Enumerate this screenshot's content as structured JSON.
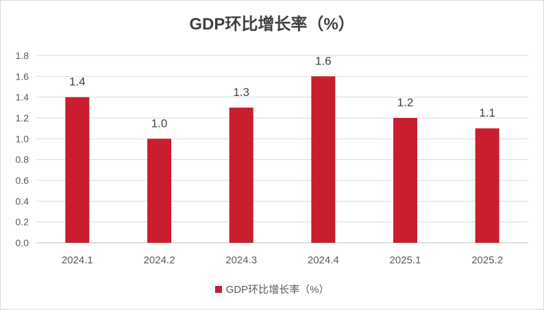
{
  "chart_data": {
    "type": "bar",
    "title": "GDP环比增长率（%）",
    "categories": [
      "2024.1",
      "2024.2",
      "2024.3",
      "2024.4",
      "2025.1",
      "2025.2"
    ],
    "series": [
      {
        "name": "GDP环比增长率（%）",
        "values": [
          1.4,
          1.0,
          1.3,
          1.6,
          1.2,
          1.1
        ],
        "color": "#C81E2E"
      }
    ],
    "data_labels": [
      "1.4",
      "1.0",
      "1.3",
      "1.6",
      "1.2",
      "1.1"
    ],
    "y_ticks": [
      "0.0",
      "0.2",
      "0.4",
      "0.6",
      "0.8",
      "1.0",
      "1.2",
      "1.4",
      "1.6",
      "1.8"
    ],
    "ylim": [
      0,
      1.8
    ],
    "xlabel": "",
    "ylabel": "",
    "grid": true,
    "legend_position": "bottom"
  }
}
